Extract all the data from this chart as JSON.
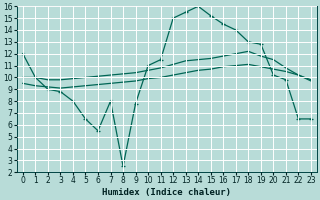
{
  "xlabel": "Humidex (Indice chaleur)",
  "bg_color": "#b8dcd8",
  "line_color": "#006655",
  "grid_color": "#ffffff",
  "xlim": [
    -0.5,
    23.5
  ],
  "ylim": [
    2,
    16
  ],
  "xticks": [
    0,
    1,
    2,
    3,
    4,
    5,
    6,
    7,
    8,
    9,
    10,
    11,
    12,
    13,
    14,
    15,
    16,
    17,
    18,
    19,
    20,
    21,
    22,
    23
  ],
  "yticks": [
    2,
    3,
    4,
    5,
    6,
    7,
    8,
    9,
    10,
    11,
    12,
    13,
    14,
    15,
    16
  ],
  "line1_x": [
    0,
    1,
    2,
    3,
    4,
    5,
    6,
    7,
    8,
    9,
    10,
    11,
    12,
    13,
    14,
    15,
    16,
    17,
    18,
    19,
    20,
    21,
    22,
    23
  ],
  "line1_y": [
    12,
    10,
    9.0,
    8.8,
    8.0,
    6.5,
    5.5,
    8.0,
    2.5,
    7.8,
    11.0,
    11.5,
    15.0,
    15.5,
    16.0,
    15.2,
    14.5,
    14.0,
    13.0,
    12.8,
    10.2,
    9.8,
    6.5,
    6.5
  ],
  "line2_x": [
    0,
    1,
    2,
    3,
    4,
    5,
    6,
    7,
    8,
    9,
    10,
    11,
    12,
    13,
    14,
    15,
    16,
    17,
    18,
    19,
    20,
    21,
    22,
    23
  ],
  "line2_y": [
    10.0,
    10.0,
    9.8,
    9.8,
    9.9,
    10.0,
    10.1,
    10.2,
    10.3,
    10.4,
    10.6,
    10.8,
    11.1,
    11.4,
    11.5,
    11.6,
    11.8,
    12.0,
    12.2,
    11.8,
    11.5,
    10.8,
    10.2,
    9.8
  ],
  "line3_x": [
    0,
    1,
    2,
    3,
    4,
    5,
    6,
    7,
    8,
    9,
    10,
    11,
    12,
    13,
    14,
    15,
    16,
    17,
    18,
    19,
    20,
    21,
    22,
    23
  ],
  "line3_y": [
    9.5,
    9.3,
    9.2,
    9.1,
    9.2,
    9.3,
    9.4,
    9.5,
    9.6,
    9.7,
    9.9,
    10.0,
    10.2,
    10.4,
    10.6,
    10.7,
    10.9,
    11.0,
    11.1,
    10.9,
    10.7,
    10.5,
    10.2,
    9.7
  ]
}
